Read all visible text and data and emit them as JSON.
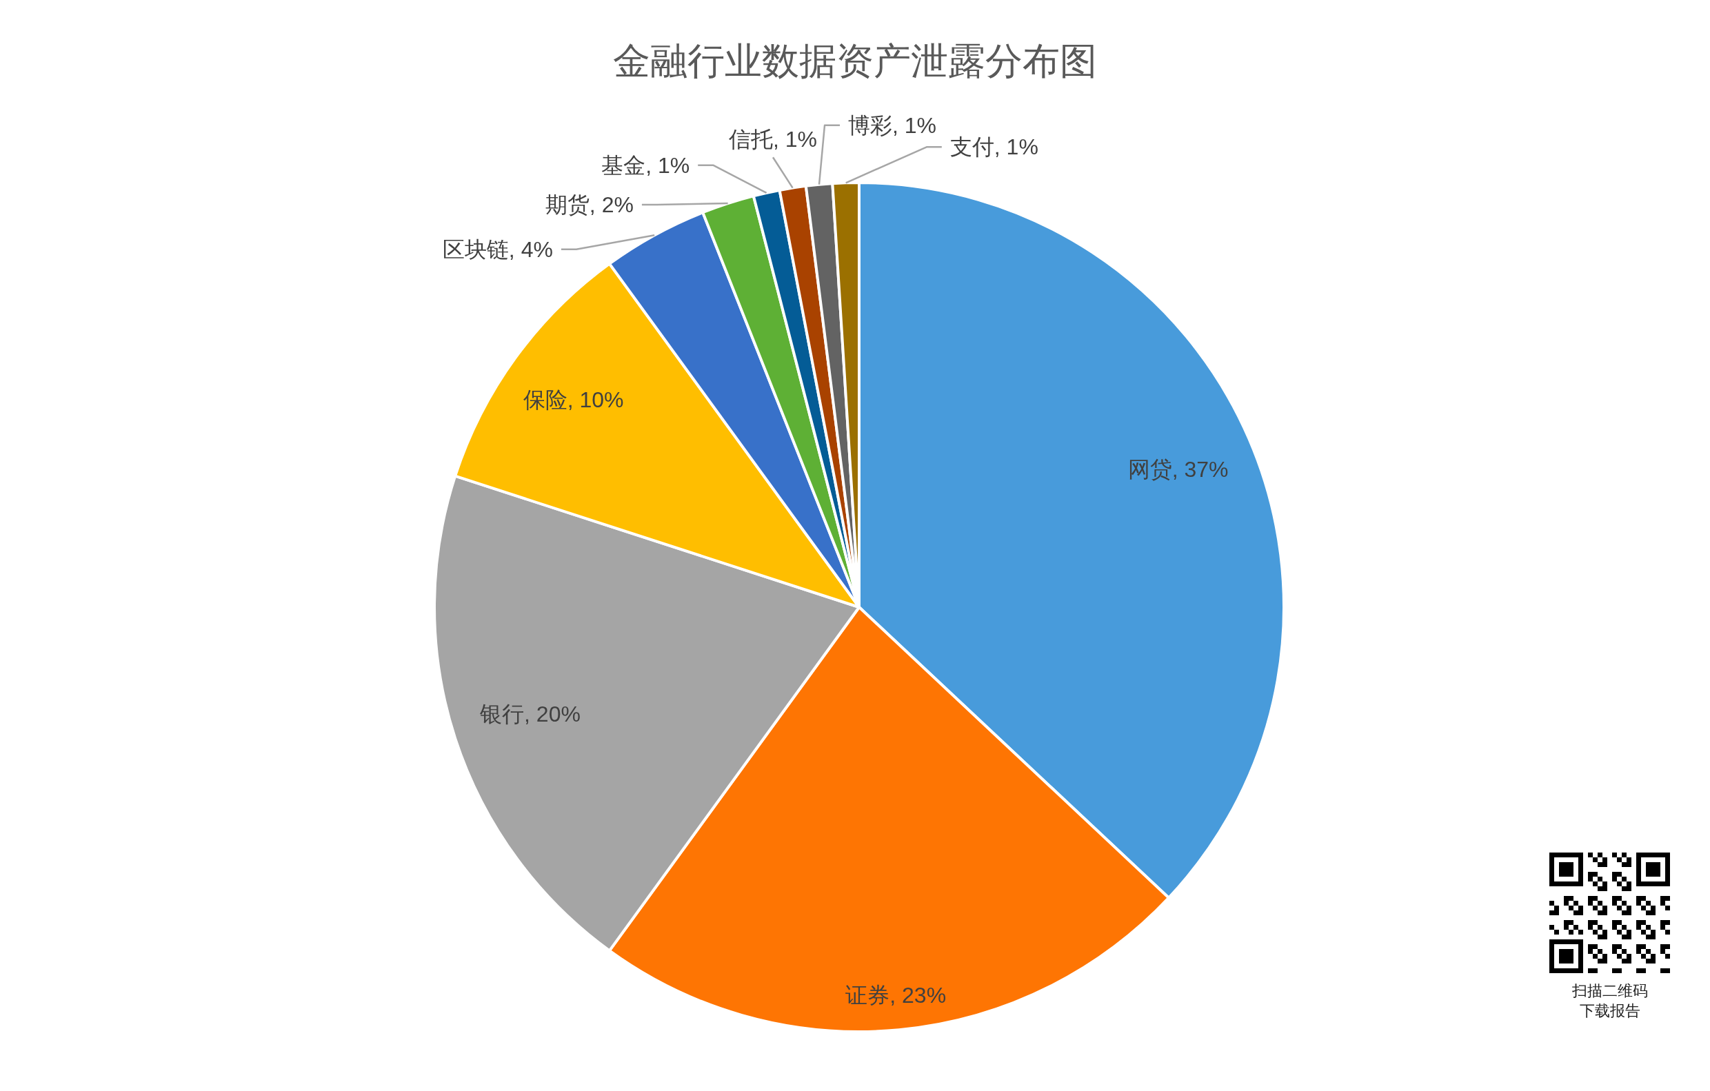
{
  "chart_data": {
    "type": "pie",
    "title": "金融行业数据资产泄露分布图",
    "categories": [
      "网贷",
      "证券",
      "银行",
      "保险",
      "区块链",
      "期货",
      "基金",
      "信托",
      "博彩",
      "支付"
    ],
    "values": [
      37,
      23,
      20,
      10,
      4,
      2,
      1,
      1,
      1,
      1
    ],
    "colors": [
      "#489bdb",
      "#fe7503",
      "#a5a5a5",
      "#ffbe00",
      "#3871c9",
      "#5eb035",
      "#045c96",
      "#a94200",
      "#636363",
      "#9b7000"
    ],
    "value_labels": [
      "37%",
      "23%",
      "20%",
      "10%",
      "4%",
      "2%",
      "1%",
      "1%",
      "1%",
      "1%"
    ],
    "annotations": [
      "扫描二维码",
      "下载报告"
    ]
  }
}
